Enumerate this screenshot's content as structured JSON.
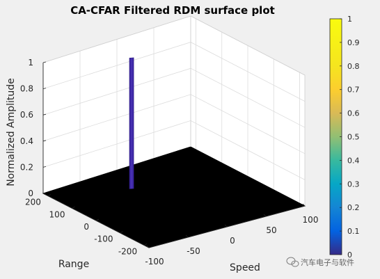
{
  "chart_data": {
    "type": "surface",
    "title": "CA-CFAR Filtered RDM surface plot",
    "xlabel": "Speed",
    "ylabel": "Range",
    "zlabel": "Normalized Amplitude",
    "x_ticks": [
      "-100",
      "-50",
      "0",
      "50",
      "100"
    ],
    "y_ticks": [
      "-200",
      "-100",
      "0",
      "100",
      "200"
    ],
    "z_ticks": [
      "0",
      "0.2",
      "0.4",
      "0.6",
      "0.8",
      "1"
    ],
    "xlim": [
      -100,
      100
    ],
    "ylim": [
      -220,
      220
    ],
    "zlim": [
      0,
      1
    ],
    "colorbar": {
      "ticks": [
        "0",
        "0.1",
        "0.2",
        "0.3",
        "0.4",
        "0.5",
        "0.6",
        "0.7",
        "0.8",
        "0.9",
        "1"
      ],
      "colormap": "parula",
      "range": [
        0,
        1
      ]
    },
    "floor_value": 0,
    "floor_color": "#000000",
    "peak": {
      "speed": -18,
      "range": 110,
      "amplitude": 1,
      "color": "#3e26a8"
    },
    "grid": true
  },
  "watermark": {
    "text": "汽车电子与软件",
    "icon": "wechat-icon"
  }
}
